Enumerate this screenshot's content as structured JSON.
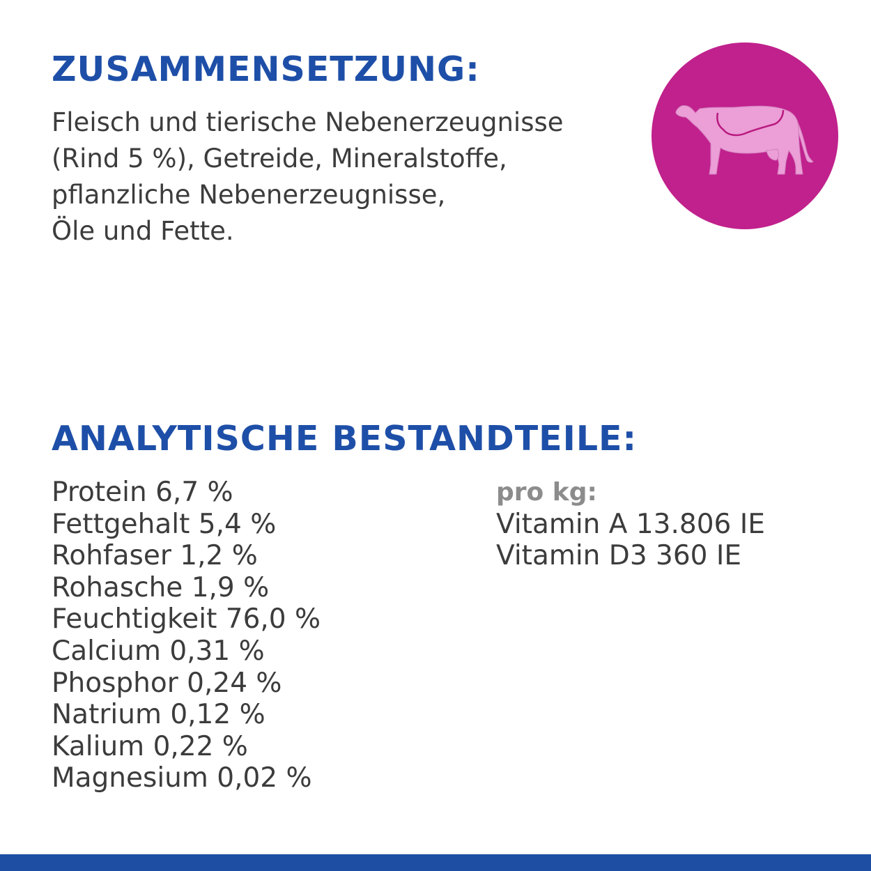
{
  "composition": {
    "heading": "ZUSAMMENSETZUNG:",
    "lines": [
      "Fleisch und tierische Nebenerzeugnisse",
      "(Rind 5 %), Getreide, Mineralstoffe,",
      "pflanzliche Nebenerzeugnisse,",
      "Öle und Fette."
    ]
  },
  "badge": {
    "icon": "cow-icon",
    "color": "#c0218c"
  },
  "analytic": {
    "heading": "ANALYTISCHE BESTANDTEILE:",
    "nutrients": [
      "Protein 6,7 %",
      "Fettgehalt 5,4 %",
      "Rohfaser 1,2 %",
      "Rohasche 1,9 %",
      "Feuchtigkeit 76,0 %",
      "Calcium 0,31 %",
      "Phosphor 0,24 %",
      "Natrium 0,12 %",
      "Kalium 0,22 %",
      "Magnesium 0,02 %"
    ],
    "per_kg": {
      "label": "pro kg:",
      "items": [
        "Vitamin A 13.806 IE",
        "Vitamin D3 360 IE"
      ]
    }
  },
  "colors": {
    "heading": "#1e4fa8",
    "footer_bar": "#1d4ea3"
  }
}
